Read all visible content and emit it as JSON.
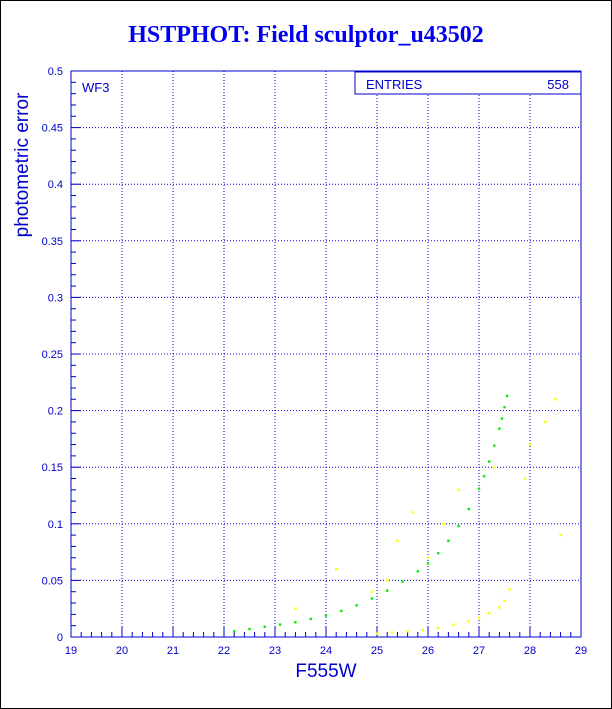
{
  "chart_data": {
    "type": "scatter",
    "title": "HSTPHOT: Field sculptor_u43502",
    "xlabel": "F555W",
    "ylabel": "photometric error",
    "xlim": [
      19,
      29
    ],
    "ylim": [
      0,
      0.5
    ],
    "x_ticks": [
      "19",
      "20",
      "21",
      "22",
      "23",
      "24",
      "25",
      "26",
      "27",
      "28",
      "29"
    ],
    "y_ticks": [
      "0",
      "0.05",
      "0.1",
      "0.15",
      "0.2",
      "0.25",
      "0.3",
      "0.35",
      "0.4",
      "0.45",
      "0.5"
    ],
    "grid": true,
    "annotation": "WF3",
    "stats_box": {
      "label": "ENTRIES",
      "value": "558"
    },
    "colors": {
      "axis": "#0000cc",
      "series_a": "#00ee00",
      "series_b": "#ffff00",
      "title": "#0000ee"
    },
    "series": [
      {
        "color": "#00ee00",
        "x": [
          22.2,
          22.5,
          22.8,
          23.1,
          23.4,
          23.7,
          24.0,
          24.3,
          24.6,
          24.9,
          25.2,
          25.5,
          25.8,
          26.0,
          26.2,
          26.4,
          26.6,
          26.8,
          27.0,
          27.1,
          27.2,
          27.3,
          27.4,
          27.45,
          27.5,
          27.55
        ],
        "y": [
          0.005,
          0.007,
          0.009,
          0.011,
          0.013,
          0.016,
          0.019,
          0.023,
          0.028,
          0.034,
          0.041,
          0.049,
          0.058,
          0.065,
          0.074,
          0.085,
          0.098,
          0.113,
          0.131,
          0.142,
          0.155,
          0.169,
          0.184,
          0.193,
          0.203,
          0.213
        ]
      },
      {
        "color": "#ffff00",
        "x": [
          25.0,
          25.3,
          25.6,
          25.9,
          26.2,
          26.5,
          26.8,
          27.0,
          27.2,
          27.4,
          27.5,
          27.6,
          23.4,
          24.2,
          25.4,
          25.7,
          26.3,
          26.6,
          27.3,
          28.0,
          28.3,
          28.5,
          27.9,
          28.6,
          25.2,
          26.0,
          24.9
        ],
        "y": [
          0.003,
          0.004,
          0.005,
          0.006,
          0.008,
          0.011,
          0.014,
          0.017,
          0.021,
          0.026,
          0.032,
          0.042,
          0.025,
          0.06,
          0.085,
          0.11,
          0.1,
          0.13,
          0.15,
          0.17,
          0.19,
          0.21,
          0.14,
          0.09,
          0.05,
          0.07,
          0.04
        ]
      }
    ]
  }
}
